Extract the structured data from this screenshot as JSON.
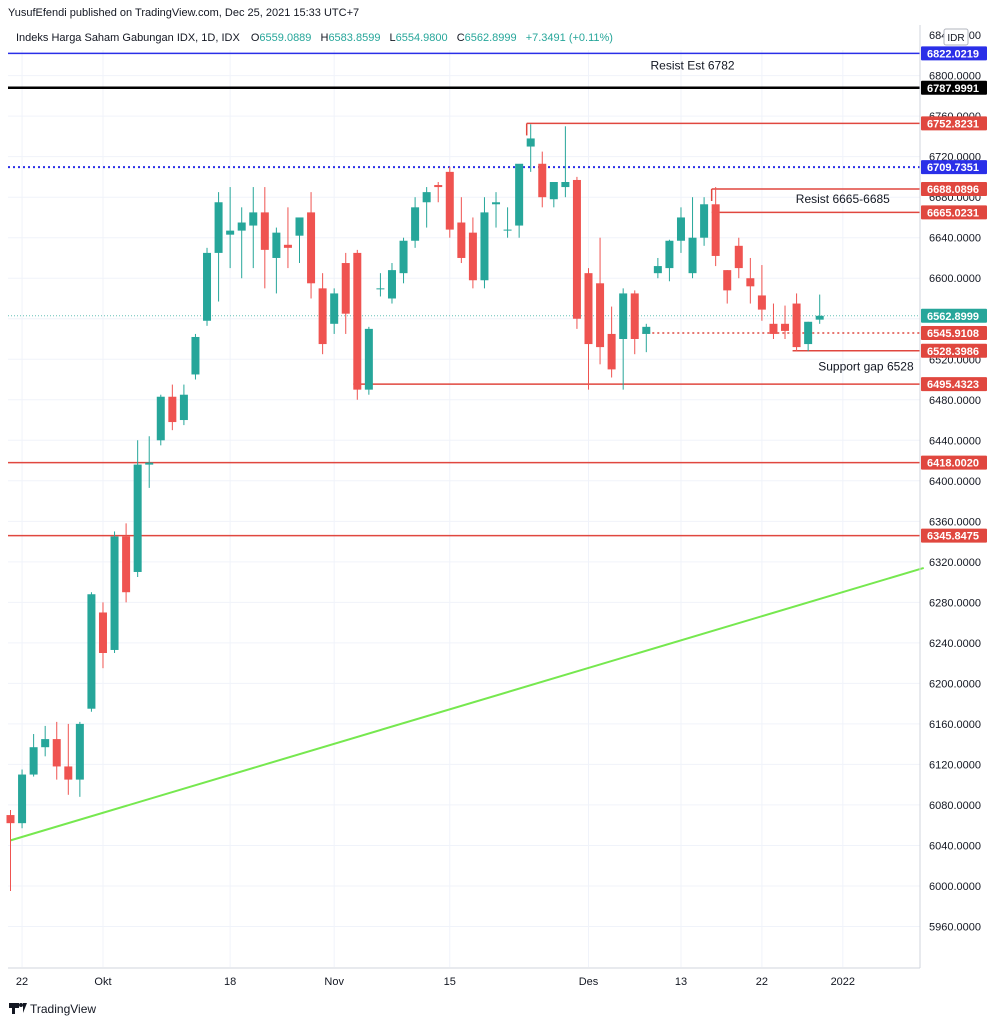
{
  "header": {
    "published": "YusufEfendi published on TradingView.com, Dec 25, 2021 15:33 UTC+7",
    "symbol": "Indeks Harga Saham Gabungan IDX, 1D, IDX",
    "o_label": "O",
    "o_value": "6559.0889",
    "h_label": "H",
    "h_value": "6583.8599",
    "l_label": "L",
    "l_value": "6554.9800",
    "c_label": "C",
    "c_value": "6562.8999",
    "change": "+7.3491 (+0.11%)"
  },
  "currency": "IDR",
  "footer": {
    "brand": "TradingView"
  },
  "colors": {
    "up": "#26a69a",
    "down": "#ef5350",
    "trend": "#76e84f",
    "blue": "#2a2fe8",
    "black": "#000000",
    "red_line": "#e0473f"
  },
  "chart_data": {
    "type": "candlestick",
    "ylim": [
      5920,
      6850
    ],
    "y_ticks": [
      5960,
      6000,
      6040,
      6080,
      6120,
      6160,
      6200,
      6240,
      6280,
      6320,
      6360,
      6400,
      6440,
      6480,
      6520,
      6560,
      6600,
      6640,
      6680,
      6720,
      6760,
      6800,
      6840
    ],
    "x_tick_labels": [
      {
        "label": "22",
        "bar": 1
      },
      {
        "label": "Okt",
        "bar": 8
      },
      {
        "label": "18",
        "bar": 19
      },
      {
        "label": "Nov",
        "bar": 28
      },
      {
        "label": "15",
        "bar": 38
      },
      {
        "label": "Des",
        "bar": 50
      },
      {
        "label": "13",
        "bar": 58
      },
      {
        "label": "22",
        "bar": 65
      },
      {
        "label": "2022",
        "bar": 72
      }
    ],
    "candles": [
      [
        6070,
        6075,
        5995,
        6062
      ],
      [
        6062,
        6115,
        6057,
        6110
      ],
      [
        6110,
        6150,
        6108,
        6137
      ],
      [
        6137,
        6158,
        6128,
        6145
      ],
      [
        6145,
        6162,
        6105,
        6118
      ],
      [
        6118,
        6160,
        6090,
        6105
      ],
      [
        6105,
        6162,
        6088,
        6160
      ],
      [
        6175,
        6290,
        6172,
        6288
      ],
      [
        6270,
        6280,
        6215,
        6230
      ],
      [
        6233,
        6350,
        6230,
        6345
      ],
      [
        6345,
        6358,
        6280,
        6290
      ],
      [
        6310,
        6440,
        6305,
        6416
      ],
      [
        6416,
        6444,
        6393,
        6418
      ],
      [
        6440,
        6485,
        6435,
        6483
      ],
      [
        6483,
        6495,
        6450,
        6458
      ],
      [
        6460,
        6495,
        6455,
        6485
      ],
      [
        6505,
        6545,
        6500,
        6542
      ],
      [
        6558,
        6630,
        6553,
        6625
      ],
      [
        6625,
        6685,
        6577,
        6675
      ],
      [
        6643,
        6690,
        6610,
        6647
      ],
      [
        6647,
        6670,
        6600,
        6655
      ],
      [
        6652,
        6690,
        6610,
        6665
      ],
      [
        6665,
        6690,
        6590,
        6628
      ],
      [
        6620,
        6650,
        6585,
        6645
      ],
      [
        6633,
        6670,
        6610,
        6630
      ],
      [
        6642,
        6660,
        6615,
        6660
      ],
      [
        6665,
        6685,
        6580,
        6595
      ],
      [
        6590,
        6605,
        6525,
        6535
      ],
      [
        6555,
        6590,
        6545,
        6585
      ],
      [
        6615,
        6625,
        6545,
        6565
      ],
      [
        6625,
        6628,
        6480,
        6490
      ],
      [
        6490,
        6552,
        6485,
        6550
      ],
      [
        6590,
        6605,
        6582,
        6590
      ],
      [
        6580,
        6615,
        6575,
        6608
      ],
      [
        6605,
        6640,
        6595,
        6637
      ],
      [
        6637,
        6680,
        6630,
        6670
      ],
      [
        6675,
        6690,
        6650,
        6685
      ],
      [
        6692,
        6695,
        6675,
        6690
      ],
      [
        6705,
        6710,
        6640,
        6648
      ],
      [
        6655,
        6680,
        6615,
        6620
      ],
      [
        6645,
        6660,
        6590,
        6598
      ],
      [
        6598,
        6680,
        6590,
        6665
      ],
      [
        6673,
        6685,
        6650,
        6675
      ],
      [
        6648,
        6670,
        6640,
        6648
      ],
      [
        6652,
        6712,
        6640,
        6713
      ],
      [
        6730,
        6752,
        6705,
        6738
      ],
      [
        6713,
        6725,
        6670,
        6680
      ],
      [
        6678,
        6695,
        6670,
        6695
      ],
      [
        6690,
        6750,
        6680,
        6695
      ],
      [
        6697,
        6700,
        6550,
        6560
      ],
      [
        6605,
        6610,
        6490,
        6535
      ],
      [
        6595,
        6640,
        6515,
        6532
      ],
      [
        6545,
        6572,
        6502,
        6510
      ],
      [
        6540,
        6590,
        6490,
        6585
      ],
      [
        6585,
        6588,
        6525,
        6540
      ],
      [
        6545,
        6555,
        6527,
        6552
      ],
      [
        6605,
        6620,
        6600,
        6612
      ],
      [
        6610,
        6638,
        6597,
        6637
      ],
      [
        6637,
        6670,
        6625,
        6660
      ],
      [
        6605,
        6680,
        6600,
        6640
      ],
      [
        6640,
        6680,
        6632,
        6673
      ],
      [
        6673,
        6690,
        6612,
        6622
      ],
      [
        6608,
        6608,
        6575,
        6588
      ],
      [
        6632,
        6640,
        6600,
        6610
      ],
      [
        6600,
        6620,
        6575,
        6592
      ],
      [
        6583,
        6613,
        6558,
        6569
      ],
      [
        6555,
        6575,
        6540,
        6545
      ],
      [
        6555,
        6573,
        6540,
        6548
      ],
      [
        6575,
        6585,
        6528,
        6532
      ],
      [
        6535,
        6557,
        6528,
        6557
      ],
      [
        6559.0889,
        6583.8599,
        6554.98,
        6562.8999
      ]
    ],
    "levels": [
      {
        "value": 6822.0219,
        "label": "6822.0219",
        "style": "solid",
        "color": "#2a2fe8"
      },
      {
        "value": 6787.9991,
        "label": "6787.9991",
        "style": "solid-thick",
        "color": "#000000"
      },
      {
        "value": 6709.7351,
        "label": "6709.7351",
        "style": "dotted",
        "color": "#2a2fe8"
      },
      {
        "value": 6418.002,
        "label": "6418.0020",
        "style": "solid",
        "color": "#e0473f"
      },
      {
        "value": 6345.8475,
        "label": "6345.8475",
        "style": "solid",
        "color": "#e0473f"
      }
    ],
    "segments": [
      {
        "value": 6752.8231,
        "label": "6752.8231",
        "from_bar": 45,
        "tick_down": true
      },
      {
        "value": 6688.0896,
        "label": "6688.0896",
        "from_bar": 61,
        "tick_down": true
      },
      {
        "value": 6665.0231,
        "label": "6665.0231",
        "from_bar": 61,
        "tick_down": false
      },
      {
        "value": 6528.3986,
        "label": "6528.3986",
        "from_bar": 68,
        "tick_down": false
      },
      {
        "value": 6495.4323,
        "label": "6495.4323",
        "from_bar": 30,
        "tick_down": false
      },
      {
        "value": 6545.9108,
        "label": "6545.9108",
        "from_bar": 55,
        "dotted": true
      }
    ],
    "last_price": {
      "value": 6562.8999,
      "label": "6562.8999"
    },
    "trendline": {
      "from_bar": 0,
      "from_value": 6045,
      "to_bar": 79,
      "to_value": 6314
    },
    "annotations": [
      {
        "text": "Resist Est 6782",
        "bar": 59,
        "value": 6810
      },
      {
        "text": "Resist 6665-6685",
        "bar": 72,
        "value": 6678
      },
      {
        "text": "Support gap 6528",
        "bar": 74,
        "value": 6513
      }
    ]
  }
}
